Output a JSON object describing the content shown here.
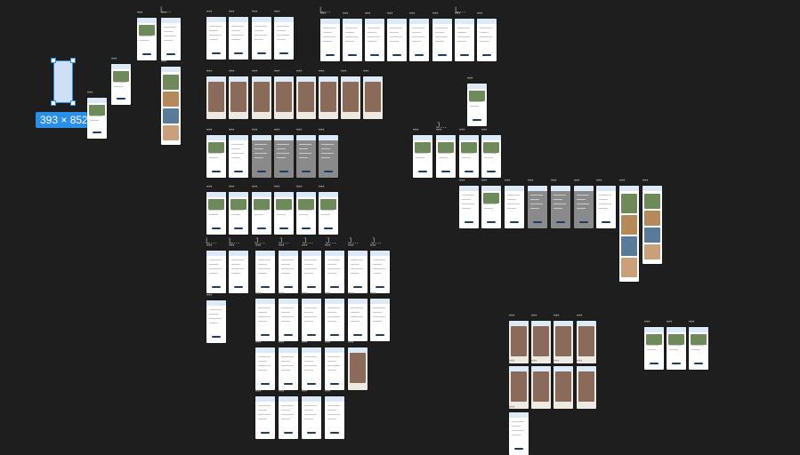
{
  "canvas": {
    "background": "#1e1e1e",
    "accent": "#2b8fe8"
  },
  "selection": {
    "dimensions": "393 × 852"
  },
  "frame_title_placeholder": "•••",
  "group_labels": {
    "short_label": "L...",
    "j_label": "J..."
  }
}
